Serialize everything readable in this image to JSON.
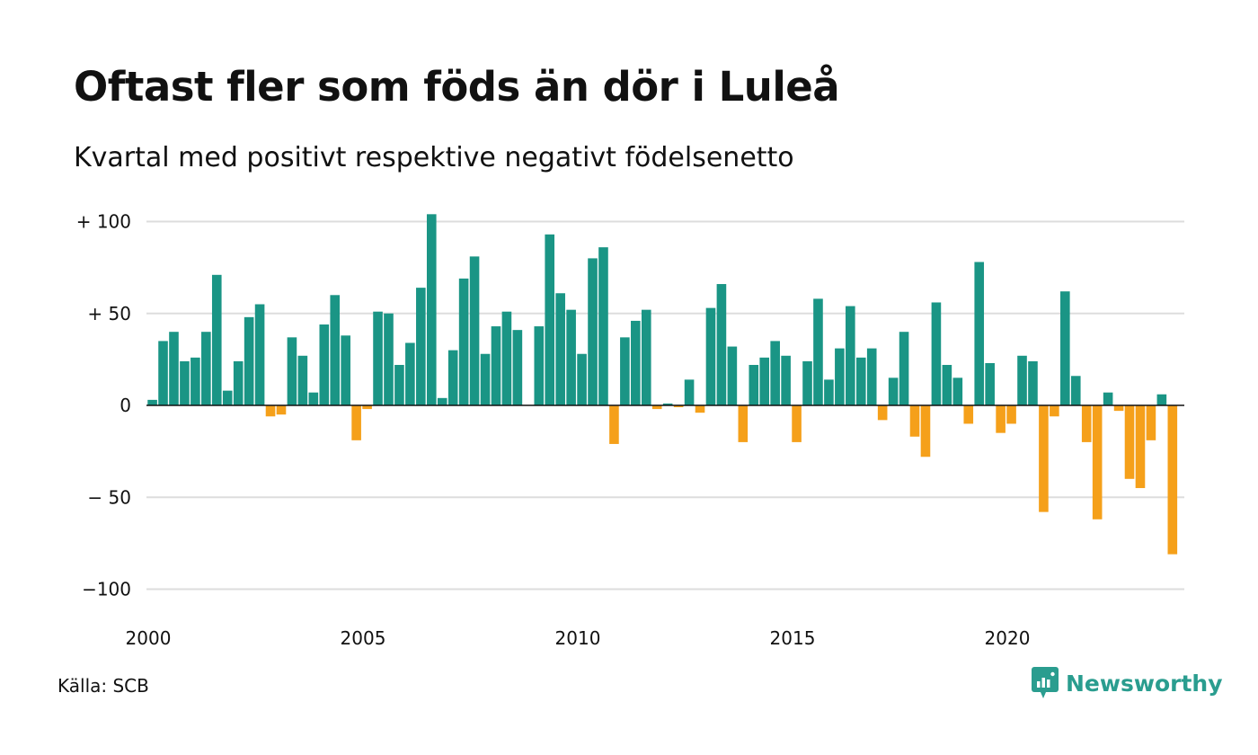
{
  "title": "Oftast fler som föds än dör i Luleå",
  "subtitle": "Kvartal med positivt respektive negativt födelsenetto",
  "source": "Källa: SCB",
  "brand": {
    "name": "Newsworthy",
    "icon": "newsworthy-logo-icon"
  },
  "colors": {
    "positive": "#1a9585",
    "negative": "#f5a01a",
    "grid": "#dddddd",
    "zero": "#111111"
  },
  "chart_data": {
    "type": "bar",
    "x_start": 2000,
    "periods_per_year": 4,
    "values": [
      3,
      35,
      40,
      24,
      26,
      40,
      71,
      8,
      24,
      48,
      55,
      -6,
      -5,
      37,
      27,
      7,
      44,
      60,
      38,
      -19,
      -2,
      51,
      50,
      22,
      34,
      64,
      104,
      4,
      30,
      69,
      81,
      28,
      43,
      51,
      41,
      0,
      43,
      93,
      61,
      52,
      28,
      80,
      86,
      -21,
      37,
      46,
      52,
      -2,
      1,
      -1,
      14,
      -4,
      53,
      66,
      32,
      -20,
      22,
      26,
      35,
      27,
      -20,
      24,
      58,
      14,
      31,
      54,
      26,
      31,
      -8,
      15,
      40,
      -17,
      -28,
      56,
      22,
      15,
      -10,
      78,
      23,
      -15,
      -10,
      27,
      24,
      -58,
      -6,
      62,
      16,
      -20,
      -62,
      7,
      -3,
      -40,
      -45,
      -19,
      6,
      -81
    ],
    "y_ticks": [
      {
        "value": 100,
        "label": "+ 100"
      },
      {
        "value": 50,
        "label": "+  50"
      },
      {
        "value": 0,
        "label": "0"
      },
      {
        "value": -50,
        "label": "− 50"
      },
      {
        "value": -100,
        "label": "−100"
      }
    ],
    "x_ticks": [
      {
        "value": 2000,
        "label": "2000"
      },
      {
        "value": 2005,
        "label": "2005"
      },
      {
        "value": 2010,
        "label": "2010"
      },
      {
        "value": 2015,
        "label": "2015"
      },
      {
        "value": 2020,
        "label": "2020"
      }
    ],
    "ylim": [
      -100,
      100
    ],
    "grid": true
  }
}
